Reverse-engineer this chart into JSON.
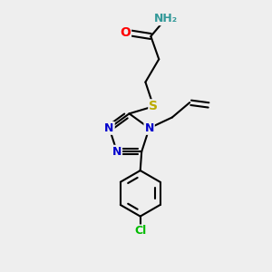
{
  "bg_color": "#eeeeee",
  "bond_color": "#000000",
  "bond_width": 1.5,
  "atom_colors": {
    "N": "#0000cc",
    "O": "#ff0000",
    "S": "#bbaa00",
    "Cl": "#00bb00",
    "H": "#339999"
  },
  "font_size": 10,
  "small_font_size": 9
}
